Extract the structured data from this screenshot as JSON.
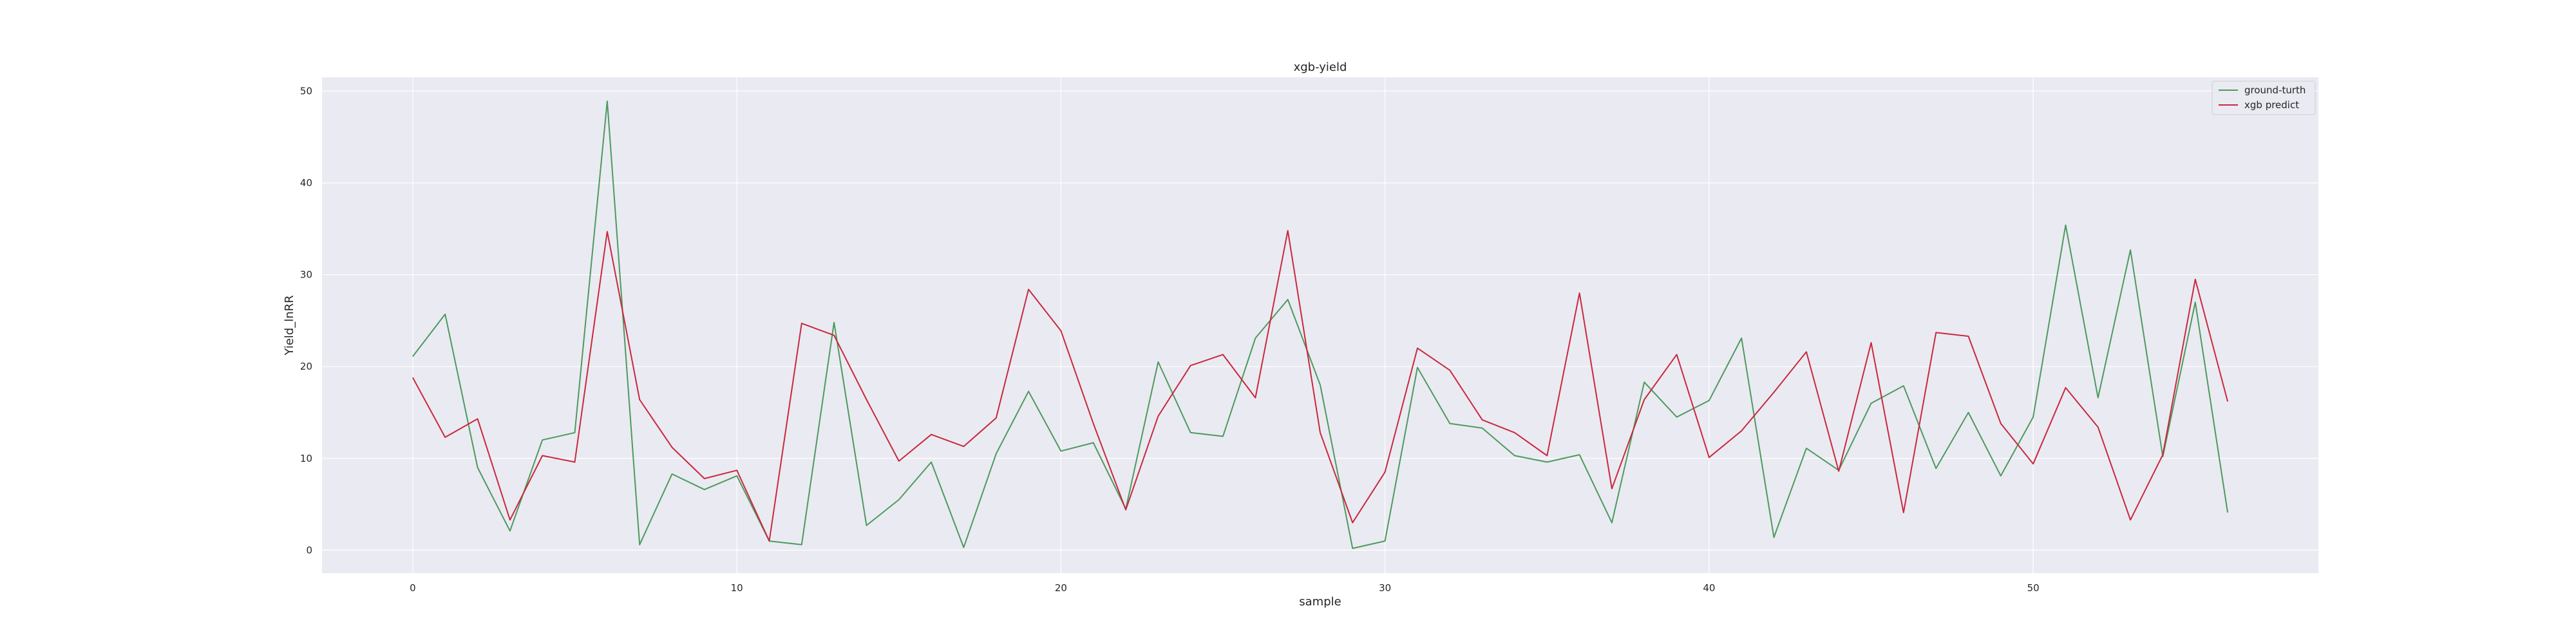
{
  "chart_data": {
    "type": "line",
    "title": "xgb-yield",
    "xlabel": "sample",
    "ylabel": "Yield_lnRR",
    "xlim": [
      -2.8,
      58.8
    ],
    "ylim": [
      -2.5,
      51.5
    ],
    "xticks": [
      0,
      10,
      20,
      30,
      40,
      50
    ],
    "yticks": [
      0,
      10,
      20,
      30,
      40,
      50
    ],
    "grid": true,
    "legend_position": "top-right",
    "background_color": "#eaeaf2",
    "x": [
      0,
      1,
      2,
      3,
      4,
      5,
      6,
      7,
      8,
      9,
      10,
      11,
      12,
      13,
      14,
      15,
      16,
      17,
      18,
      19,
      20,
      21,
      22,
      23,
      24,
      25,
      26,
      27,
      28,
      29,
      30,
      31,
      32,
      33,
      34,
      35,
      36,
      37,
      38,
      39,
      40,
      41,
      42,
      43,
      44,
      45,
      46,
      47,
      48,
      49,
      50,
      51,
      52,
      53,
      54,
      55,
      56
    ],
    "series": [
      {
        "name": "ground-turth",
        "color": "#4c9a5e",
        "values": [
          21.1,
          25.7,
          9.0,
          2.1,
          12.0,
          12.8,
          48.9,
          0.6,
          8.3,
          6.6,
          8.1,
          1.0,
          0.6,
          24.8,
          2.7,
          5.5,
          9.6,
          0.3,
          10.5,
          17.3,
          10.8,
          11.7,
          4.5,
          20.5,
          12.8,
          12.4,
          23.1,
          27.3,
          18.0,
          0.2,
          1.0,
          19.9,
          13.8,
          13.3,
          10.3,
          9.6,
          10.4,
          3.0,
          18.3,
          14.5,
          16.3,
          23.1,
          1.4,
          11.1,
          8.7,
          16.0,
          17.9,
          8.9,
          15.0,
          8.1,
          14.5,
          35.4,
          16.6,
          32.7,
          10.2,
          27.0,
          4.1
        ]
      },
      {
        "name": "xgb predict",
        "color": "#c8283c",
        "values": [
          18.8,
          12.3,
          14.3,
          3.3,
          10.3,
          9.6,
          34.7,
          16.4,
          11.2,
          7.8,
          8.7,
          1.0,
          24.7,
          23.4,
          16.4,
          9.7,
          12.6,
          11.3,
          14.4,
          28.4,
          23.9,
          13.8,
          4.4,
          14.6,
          20.1,
          21.3,
          16.6,
          34.8,
          12.8,
          3.0,
          8.5,
          22.0,
          19.6,
          14.2,
          12.8,
          10.3,
          28.0,
          6.7,
          16.4,
          21.3,
          10.1,
          13.0,
          17.2,
          21.6,
          8.6,
          22.6,
          4.1,
          23.7,
          23.3,
          13.8,
          9.4,
          17.7,
          13.4,
          3.3,
          10.4,
          29.5,
          16.2
        ]
      }
    ]
  }
}
